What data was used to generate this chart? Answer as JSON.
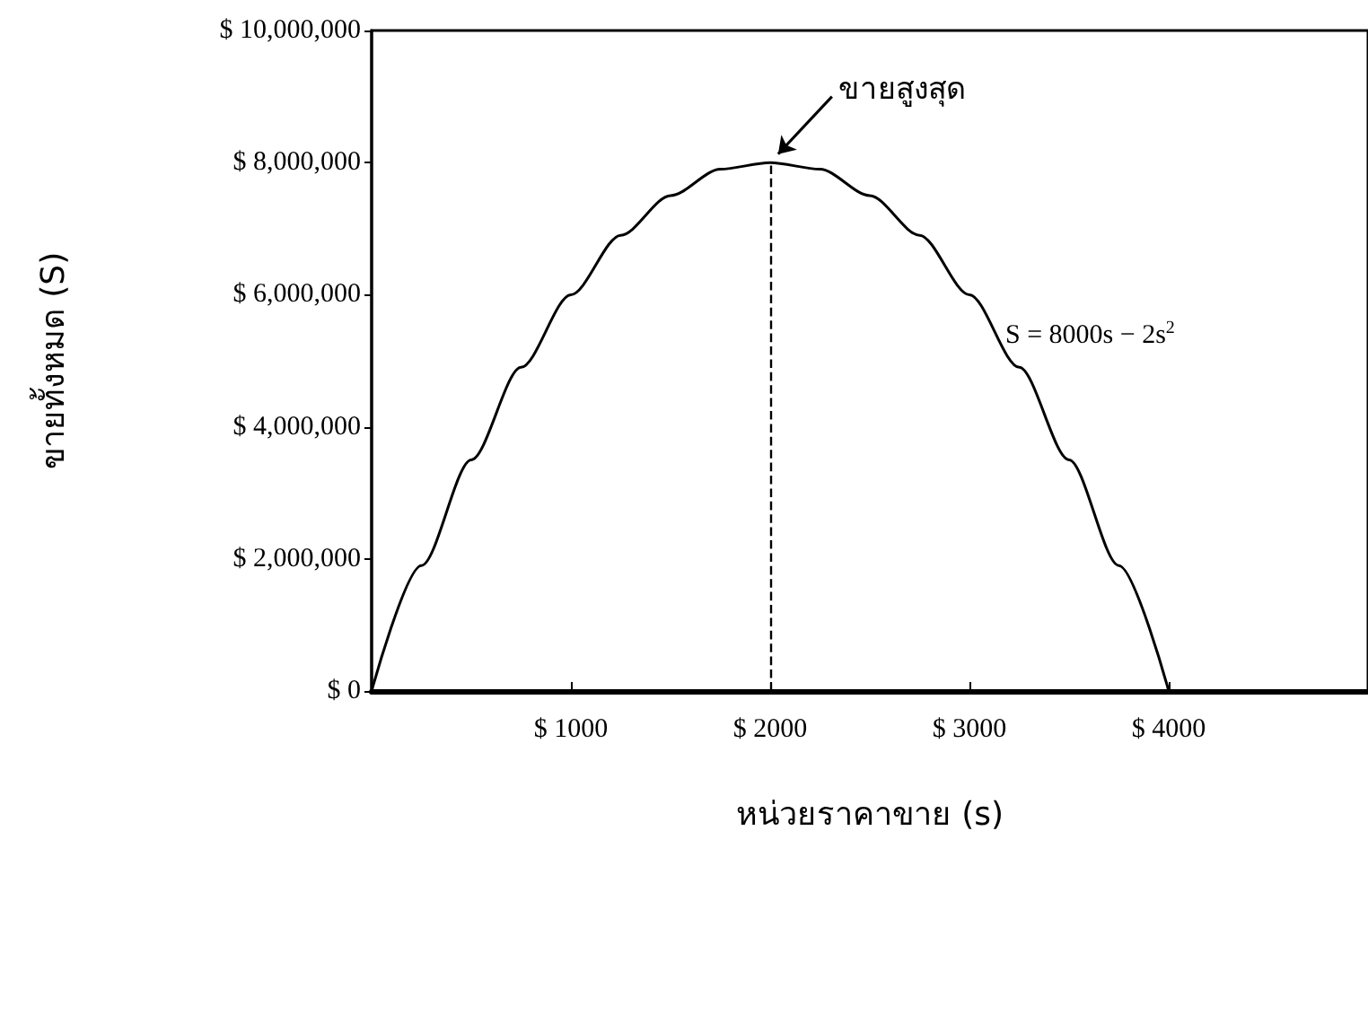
{
  "chart_data": {
    "type": "line",
    "xlabel": "หน่วยราคาขาย (s)",
    "ylabel": "ขายทั้งหมด (S)",
    "x": [
      0,
      250,
      500,
      750,
      1000,
      1250,
      1500,
      1750,
      2000,
      2250,
      2500,
      2750,
      3000,
      3250,
      3500,
      3750,
      4000
    ],
    "series": [
      {
        "color": "#000000",
        "values": [
          0,
          1900000,
          3500000,
          4900000,
          6000000,
          6900000,
          7500000,
          7900000,
          8000000,
          7900000,
          7500000,
          6900000,
          6000000,
          4900000,
          3500000,
          1900000,
          0
        ]
      }
    ],
    "xlim": [
      0,
      5000
    ],
    "xticks": [
      {
        "value": 1000,
        "label": "$ 1000"
      },
      {
        "value": 2000,
        "label": "$ 2000"
      },
      {
        "value": 3000,
        "label": "$ 3000"
      },
      {
        "value": 4000,
        "label": "$ 4000"
      }
    ],
    "ylim": [
      0,
      10000000
    ],
    "yticks": [
      {
        "value": 0,
        "label": "$ 0"
      },
      {
        "value": 2000000,
        "label": "$ 2,000,000"
      },
      {
        "value": 4000000,
        "label": "$ 4,000,000"
      },
      {
        "value": 6000000,
        "label": "$ 6,000,000"
      },
      {
        "value": 8000000,
        "label": "$ 8,000,000"
      },
      {
        "value": 10000000,
        "label": "$ 10,000,000"
      }
    ],
    "ref_lines": [
      {
        "axis": "x",
        "value": 2000,
        "line_style": "dashed",
        "color": "#000000"
      }
    ],
    "annotations": [
      {
        "text": "ขายสูงสุด",
        "x": 2000,
        "y": 8000000
      },
      "S = 8000s − 2s$^{2}$"
    ],
    "grid": false,
    "marker": "none",
    "line_style": "solid"
  }
}
